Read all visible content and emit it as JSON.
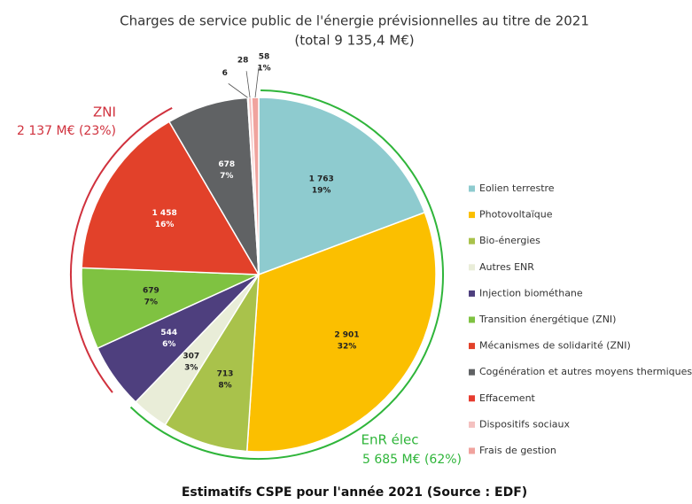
{
  "chart_data": {
    "type": "pie",
    "title": "Charges de service public de l'énergie prévisionnelles au titre de 2021",
    "subtitle": "(total 9 135,4 M€)",
    "categories": [
      "Eolien terrestre",
      "Photovoltaïque",
      "Bio-énergies",
      "Autres ENR",
      "Injection biométhane",
      "Transition énergétique (ZNI)",
      "Mécanismes de solidarité (ZNI)",
      "Cogénération et autres moyens thermiques",
      "Effacement",
      "Dispositifs sociaux",
      "Frais de gestion"
    ],
    "values": [
      1763,
      2901,
      713,
      307,
      544,
      679,
      1458,
      678,
      6,
      28,
      58
    ],
    "value_labels": [
      "1 763",
      "2 901",
      "713",
      "307",
      "544",
      "679",
      "1 458",
      "678",
      "6",
      "28",
      "58"
    ],
    "percent_labels": [
      "19%",
      "32%",
      "8%",
      "3%",
      "6%",
      "7%",
      "16%",
      "7%",
      null,
      null,
      "1%"
    ],
    "colors": [
      "#8ecbcf",
      "#fbbf00",
      "#a9c24b",
      "#e9edd8",
      "#4e3f7e",
      "#7fc241",
      "#e2412a",
      "#606264",
      "#e63c2f",
      "#f4c1c0",
      "#f0a39e"
    ],
    "annotations": [
      {
        "title": "ZNI",
        "label": "2 137 M€ (23%)",
        "color": "#d0313d"
      },
      {
        "title": "EnR élec",
        "label": "5 685 M€ (62%)",
        "color": "#2fb53a"
      }
    ],
    "caption": "Estimatifs CSPE pour l'année 2021 (Source : EDF)"
  }
}
